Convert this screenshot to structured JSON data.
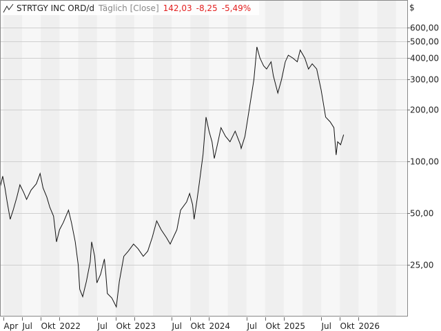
{
  "header": {
    "name": "STRTGY INC ORD/d",
    "frequency": "Täglich [Close]",
    "last": "142,03",
    "change": "-8,25",
    "change_pct": "-5,49%",
    "currency": "$",
    "icon": "line-chart-icon",
    "negative_color": "#e32020"
  },
  "chart_data": {
    "type": "line",
    "title": "STRTGY INC ORD/d",
    "xlabel": "",
    "ylabel": "$",
    "yscale": "log",
    "ylim": [
      12,
      750
    ],
    "xlim": [
      2021.2,
      2026.45
    ],
    "grid": true,
    "x_ticks": [
      {
        "t": 2021.25,
        "label": "Apr"
      },
      {
        "t": 2021.5,
        "label": "Jul"
      },
      {
        "t": 2021.75,
        "label": "Okt"
      },
      {
        "t": 2022.0,
        "label": "2022"
      },
      {
        "t": 2022.5,
        "label": "Jul"
      },
      {
        "t": 2022.75,
        "label": "Okt"
      },
      {
        "t": 2023.0,
        "label": "2023"
      },
      {
        "t": 2023.5,
        "label": "Jul"
      },
      {
        "t": 2023.75,
        "label": "Okt"
      },
      {
        "t": 2024.0,
        "label": "2024"
      },
      {
        "t": 2024.5,
        "label": "Jul"
      },
      {
        "t": 2024.75,
        "label": "Okt"
      },
      {
        "t": 2025.0,
        "label": "2025"
      },
      {
        "t": 2025.5,
        "label": "Jul"
      },
      {
        "t": 2025.75,
        "label": "Okt"
      },
      {
        "t": 2026.0,
        "label": "2026"
      }
    ],
    "y_ticks": [
      {
        "v": 600,
        "label": "600,00"
      },
      {
        "v": 500,
        "label": "500,00"
      },
      {
        "v": 400,
        "label": "400,00"
      },
      {
        "v": 300,
        "label": "300,00"
      },
      {
        "v": 200,
        "label": "200,00"
      },
      {
        "v": 100,
        "label": "100,00"
      },
      {
        "v": 50,
        "label": "50,00"
      },
      {
        "v": 25,
        "label": "25,00"
      }
    ],
    "series": [
      {
        "name": "STRTGY INC ORD Close",
        "color": "#111111",
        "points": [
          [
            2021.21,
            72
          ],
          [
            2021.24,
            82
          ],
          [
            2021.27,
            70
          ],
          [
            2021.3,
            58
          ],
          [
            2021.34,
            46
          ],
          [
            2021.38,
            52
          ],
          [
            2021.43,
            62
          ],
          [
            2021.47,
            73
          ],
          [
            2021.52,
            66
          ],
          [
            2021.56,
            60
          ],
          [
            2021.62,
            68
          ],
          [
            2021.69,
            74
          ],
          [
            2021.74,
            85
          ],
          [
            2021.78,
            70
          ],
          [
            2021.83,
            62
          ],
          [
            2021.87,
            54
          ],
          [
            2021.92,
            48
          ],
          [
            2021.96,
            34
          ],
          [
            2022.0,
            40
          ],
          [
            2022.05,
            44
          ],
          [
            2022.12,
            52
          ],
          [
            2022.16,
            44
          ],
          [
            2022.21,
            34
          ],
          [
            2022.25,
            25
          ],
          [
            2022.27,
            18
          ],
          [
            2022.31,
            16.3
          ],
          [
            2022.36,
            20
          ],
          [
            2022.41,
            26
          ],
          [
            2022.43,
            34
          ],
          [
            2022.47,
            28
          ],
          [
            2022.5,
            19.6
          ],
          [
            2022.55,
            22
          ],
          [
            2022.6,
            27
          ],
          [
            2022.62,
            22
          ],
          [
            2022.64,
            17
          ],
          [
            2022.7,
            16
          ],
          [
            2022.76,
            14.2
          ],
          [
            2022.8,
            20
          ],
          [
            2022.86,
            28
          ],
          [
            2022.92,
            30
          ],
          [
            2022.99,
            33
          ],
          [
            2023.05,
            31
          ],
          [
            2023.12,
            28
          ],
          [
            2023.18,
            30
          ],
          [
            2023.24,
            36
          ],
          [
            2023.3,
            45
          ],
          [
            2023.36,
            40
          ],
          [
            2023.43,
            36
          ],
          [
            2023.48,
            33
          ],
          [
            2023.57,
            40
          ],
          [
            2023.62,
            52
          ],
          [
            2023.7,
            58
          ],
          [
            2023.74,
            65
          ],
          [
            2023.78,
            56
          ],
          [
            2023.8,
            46
          ],
          [
            2023.84,
            60
          ],
          [
            2023.87,
            75
          ],
          [
            2023.92,
            110
          ],
          [
            2023.96,
            181
          ],
          [
            2024.0,
            150
          ],
          [
            2024.04,
            130
          ],
          [
            2024.07,
            104
          ],
          [
            2024.12,
            130
          ],
          [
            2024.16,
            157
          ],
          [
            2024.22,
            140
          ],
          [
            2024.28,
            130
          ],
          [
            2024.35,
            150
          ],
          [
            2024.42,
            125
          ],
          [
            2024.43,
            119
          ],
          [
            2024.48,
            140
          ],
          [
            2024.55,
            217
          ],
          [
            2024.6,
            300
          ],
          [
            2024.64,
            464
          ],
          [
            2024.68,
            400
          ],
          [
            2024.73,
            360
          ],
          [
            2024.77,
            345
          ],
          [
            2024.83,
            380
          ],
          [
            2024.86,
            315
          ],
          [
            2024.92,
            250
          ],
          [
            2024.97,
            300
          ],
          [
            2025.02,
            380
          ],
          [
            2025.06,
            415
          ],
          [
            2025.12,
            400
          ],
          [
            2025.18,
            380
          ],
          [
            2025.22,
            445
          ],
          [
            2025.28,
            400
          ],
          [
            2025.33,
            345
          ],
          [
            2025.38,
            370
          ],
          [
            2025.44,
            345
          ],
          [
            2025.5,
            260
          ],
          [
            2025.56,
            181
          ],
          [
            2025.62,
            170
          ],
          [
            2025.67,
            157
          ],
          [
            2025.7,
            109
          ],
          [
            2025.72,
            130
          ],
          [
            2025.76,
            125
          ],
          [
            2025.8,
            143
          ]
        ]
      }
    ]
  }
}
